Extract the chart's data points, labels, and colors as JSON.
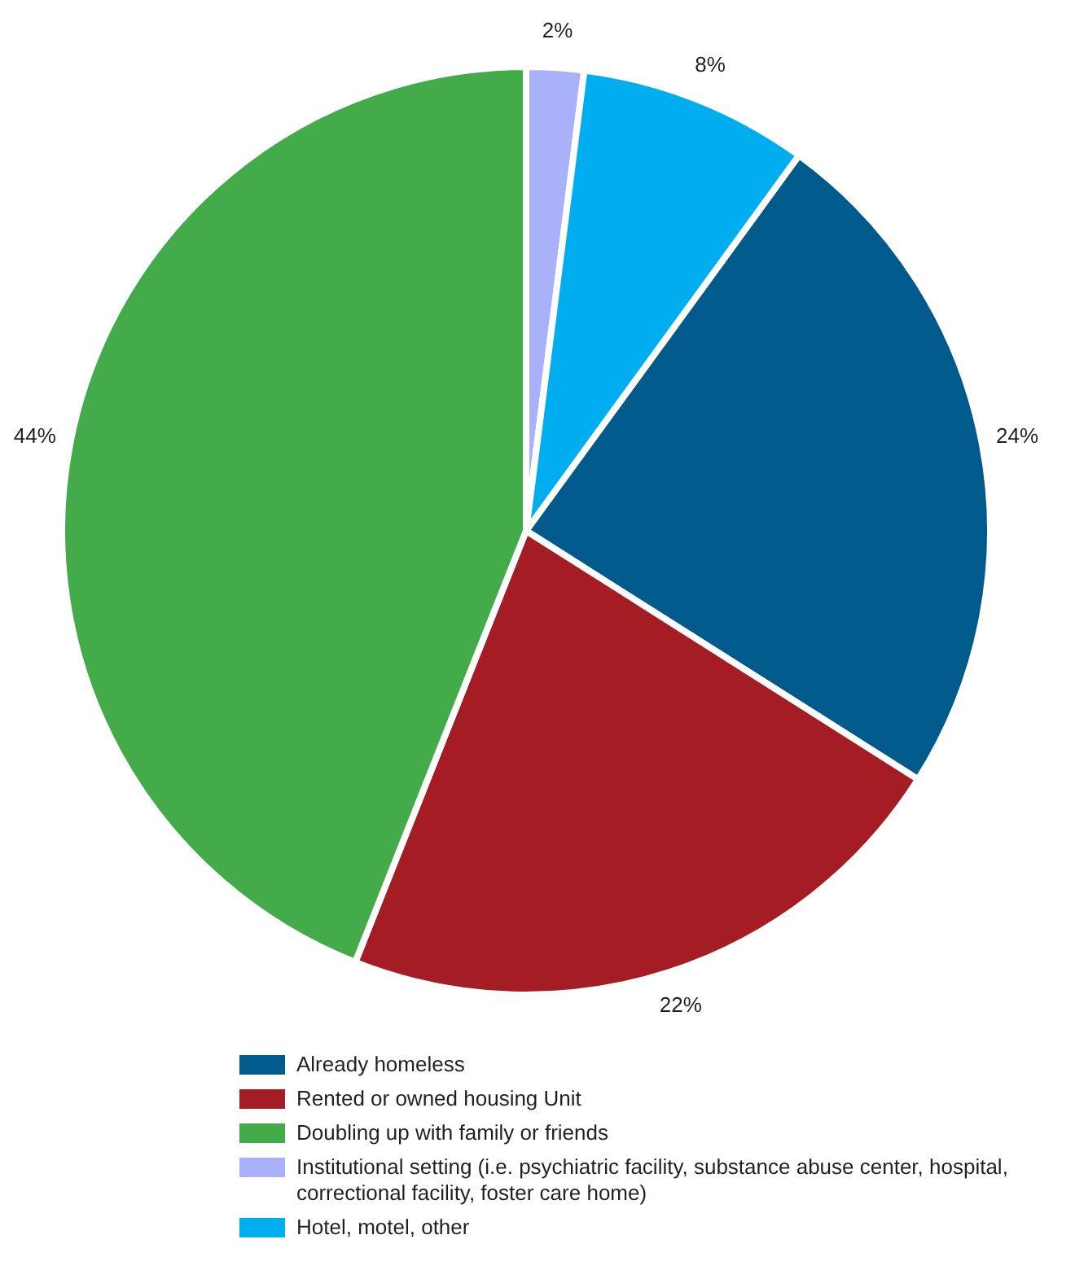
{
  "chart_data": {
    "type": "pie",
    "categories": [
      "Already homeless",
      "Rented or owned housing Unit",
      "Doubling up with family or friends",
      "Institutional setting (i.e. psychiatric facility, substance abuse center, hospital, correctional facility, foster care home)",
      "Hotel, motel, other"
    ],
    "values": [
      24,
      22,
      44,
      2,
      8
    ],
    "colors": [
      "#005a8c",
      "#a51d24",
      "#43ab4a",
      "#a9b1fb",
      "#00aeef"
    ],
    "value_labels": [
      "24%",
      "22%",
      "44%",
      "2%",
      "8%"
    ],
    "legend": "bottom"
  }
}
